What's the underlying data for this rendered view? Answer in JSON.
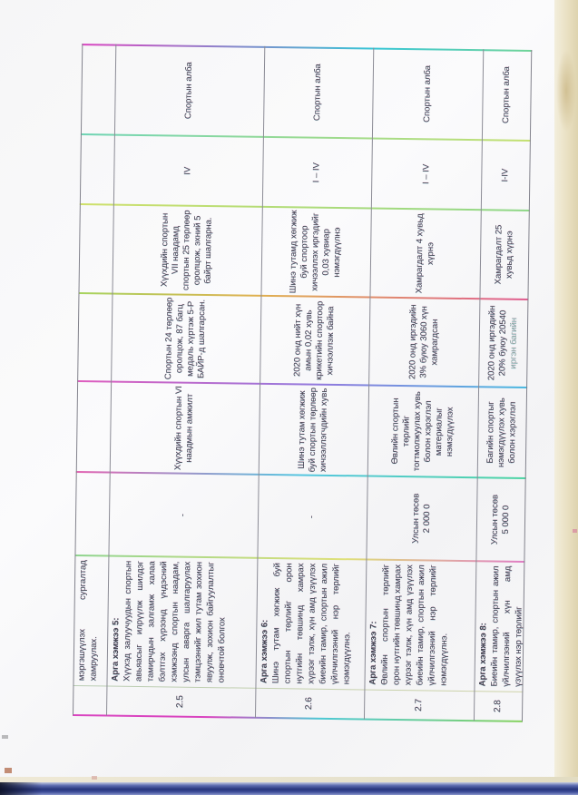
{
  "table": {
    "rows": [
      {
        "no": "",
        "heading": "",
        "measure": "мэргэшүүлэх сургалтад хамруулах."
      },
      {
        "no": "2.5",
        "heading": "Арга хэмжээ 5:",
        "measure": "Хүүхэд залуучуудын спортын авьяасыг илрүүлж шилдэг тамирчдын залгамж халаа бэлтгэх хүрээнд үндэсний хэмжээнд спортын наадам, улсын аварга шалгаруулах тэмцээнийг жил тутам зохион явуулж, зохион байгуулалтыг оновчтой болгох",
        "budget": "-",
        "indicator": "Хүүхдийн спортын VI наадмын амжилт",
        "baseline": "Спортын 24 төрлөөр оролцож, 87 багц медаль хүртэж 5-Р БАЙР-д шалгарсан.",
        "target": "Хүүхдийн спортын VII наадамд спортын 25 төрлөөр оролцож, эхний 5 байрт шалгарна.",
        "period": "IV",
        "agency": "Спортын алба"
      },
      {
        "no": "2.6",
        "heading": "Арга хэмжээ 6:",
        "measure": "Шинэ тутам хөгжиж буй спортын төрлийг орон нутгийн төвшинд хамрах хүрээг тэлж, хүн амд үзүүлэх биеийн тамир, спортын ажил үйлчилгээний нэр төрлийг нэмэгдүүлнэ.",
        "budget": "-",
        "indicator": "Шинэ тутам хөгжиж буй спортын төрлөөр хичээллэгчдийн хувь",
        "baseline": "2020 онд нийт хүн амын 0,02 хувь крикетийн спортоор хичээллэж байна",
        "target": "Шинэ тутамд хөгжиж буй спортоор хичээллэх иргэдийг 0,03 хувиар нэмэгдүүлнэ",
        "period": "I – IV",
        "agency": "Спортын алба"
      },
      {
        "no": "2.7",
        "heading": "Арга хэмжээ 7:",
        "measure": "Өвлийн спортын төрлийг орон нутгийн төвшинд хамрах хүрээг тэлж, хүн амд үзүүлэх биеийн тамир, спортын ажил үйлчилгээний нэр төрлийг нэмэгдүүлнэ.",
        "budget_org": "Улсын төсөв",
        "budget_amount": "2 000 0",
        "indicator": "Өвлийн спортын төрлийг тогтмолжуулах хувь болон хэрэглэл материалыг нэмэгдүүлэх",
        "baseline": "2020 онд иргэдийн 3% буюу 3060 хүн хамрагдсан",
        "target": "Хамрагдалт 4 хувьд хүрнэ",
        "period": "I – IV",
        "agency": "Спортын алба"
      },
      {
        "no": "2.8",
        "heading": "Арга хэмжээ 8:",
        "measure": "Биеийн тамир, спортын ажил үйлчилгээний хүн амд үзүүлэх нэр төрлийг",
        "budget_org": "Улсын төсөв",
        "budget_amount": "5 000 0",
        "indicator": "Багийн спортыг нэмэгдүүлэх хувь болон хэрэглэл",
        "baseline": "2020 онд иргэдийн 20% буюу 20540",
        "baseline_faded": "иргэн багийн",
        "target": "Хамрагдалт 25 хувьд хүрнэ",
        "period": "I-IV",
        "agency": "Спортын алба"
      }
    ]
  }
}
